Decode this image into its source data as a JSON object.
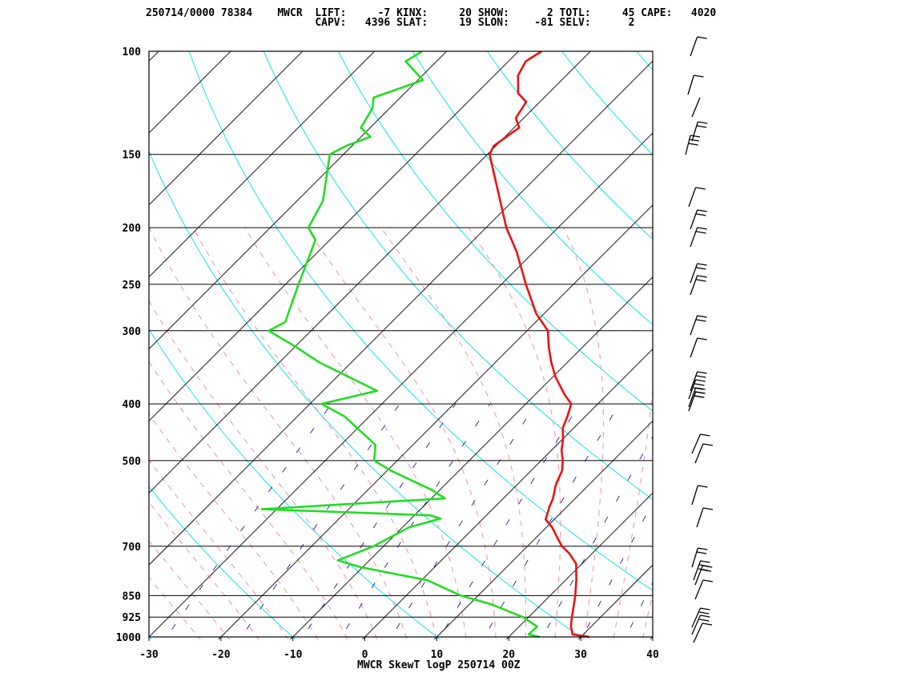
{
  "header": {
    "line1": "250714/0000 78384    MWCR  LIFT:     -7 KINX:     20 SHOW:      2 TOTL:     45 CAPE:   4020",
    "line2": "                           CAPV:   4396 SLAT:     19 SLON:    -81 SELV:      2"
  },
  "footer": {
    "title": "MWCR SkewT logP 250714 00Z"
  },
  "colors": {
    "temperature": "#ee1111",
    "dewpoint": "#22dd22",
    "isotherm": "#000000",
    "dry_adiabat": "#00e0e8",
    "moist_adiabat": "#f4a0b0",
    "mixing_ratio": "#1a1aaa",
    "isobar": "#000000"
  },
  "chart_data": {
    "type": "line",
    "title": "MWCR SkewT logP 250714 00Z",
    "xlabel": "",
    "ylabel": "",
    "x_axis": {
      "min": -30,
      "max": 40,
      "ticks": [
        "-30",
        "-20",
        "-10",
        "0",
        "10",
        "20",
        "30",
        "40"
      ]
    },
    "y_axis": {
      "scale": "log",
      "min": 100,
      "max": 1000,
      "ticks": [
        "100",
        "150",
        "200",
        "250",
        "300",
        "400",
        "500",
        "700",
        "850",
        "925",
        "1000"
      ]
    },
    "pressure_levels": [
      100,
      150,
      200,
      250,
      300,
      400,
      500,
      700,
      850,
      925,
      1000
    ],
    "series": [
      {
        "key": "temperature",
        "points": [
          [
            1000,
            31.2
          ],
          [
            990,
            28.5
          ],
          [
            960,
            27.2
          ],
          [
            925,
            26.0
          ],
          [
            900,
            25.2
          ],
          [
            850,
            23.5
          ],
          [
            800,
            21.5
          ],
          [
            750,
            19.2
          ],
          [
            720,
            16.8
          ],
          [
            700,
            14.8
          ],
          [
            680,
            13.2
          ],
          [
            650,
            10.8
          ],
          [
            630,
            8.8
          ],
          [
            600,
            7.6
          ],
          [
            580,
            6.9
          ],
          [
            550,
            5.4
          ],
          [
            520,
            4.3
          ],
          [
            500,
            3.0
          ],
          [
            480,
            1.4
          ],
          [
            460,
            0.1
          ],
          [
            440,
            -1.5
          ],
          [
            420,
            -2.5
          ],
          [
            400,
            -3.7
          ],
          [
            385,
            -6.0
          ],
          [
            360,
            -9.6
          ],
          [
            340,
            -12.2
          ],
          [
            320,
            -14.7
          ],
          [
            300,
            -17.1
          ],
          [
            280,
            -21.2
          ],
          [
            250,
            -26.6
          ],
          [
            220,
            -32.4
          ],
          [
            200,
            -37.2
          ],
          [
            175,
            -43.0
          ],
          [
            150,
            -49.7
          ],
          [
            145,
            -50.3
          ],
          [
            135,
            -49.3
          ],
          [
            130,
            -51.1
          ],
          [
            122,
            -51.9
          ],
          [
            118,
            -54.2
          ],
          [
            110,
            -56.7
          ],
          [
            104,
            -57.6
          ],
          [
            100,
            -56.8
          ]
        ]
      },
      {
        "key": "dewpoint",
        "points": [
          [
            1000,
            24.3
          ],
          [
            990,
            22.4
          ],
          [
            960,
            22.5
          ],
          [
            925,
            19.2
          ],
          [
            880,
            13.1
          ],
          [
            850,
            7.6
          ],
          [
            800,
            0.8
          ],
          [
            760,
            -10.3
          ],
          [
            740,
            -14.4
          ],
          [
            700,
            -11.4
          ],
          [
            650,
            -9.1
          ],
          [
            628,
            -5.9
          ],
          [
            620,
            -7.8
          ],
          [
            605,
            -32.1
          ],
          [
            580,
            -8.1
          ],
          [
            560,
            -11.3
          ],
          [
            520,
            -19.5
          ],
          [
            500,
            -23.2
          ],
          [
            470,
            -25.2
          ],
          [
            420,
            -33.5
          ],
          [
            400,
            -38.4
          ],
          [
            380,
            -32.5
          ],
          [
            340,
            -44.4
          ],
          [
            320,
            -49.8
          ],
          [
            300,
            -55.9
          ],
          [
            290,
            -54.8
          ],
          [
            250,
            -58.2
          ],
          [
            210,
            -62.0
          ],
          [
            200,
            -64.7
          ],
          [
            180,
            -66.4
          ],
          [
            150,
            -71.9
          ],
          [
            145,
            -70.8
          ],
          [
            140,
            -68.7
          ],
          [
            135,
            -71.3
          ],
          [
            125,
            -72.4
          ],
          [
            120,
            -73.7
          ],
          [
            112,
            -69.3
          ],
          [
            104,
            -74.3
          ],
          [
            100,
            -73.4
          ]
        ]
      }
    ],
    "wind_barbs": true
  }
}
